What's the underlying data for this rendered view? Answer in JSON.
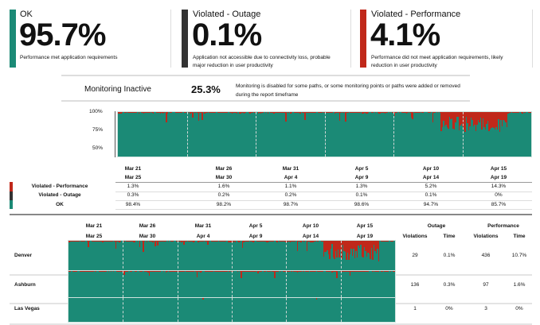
{
  "colors": {
    "ok": "#1b8a76",
    "outage": "#333333",
    "performance": "#c0281a"
  },
  "cards": [
    {
      "label": "OK",
      "value": "95.7%",
      "desc": "Performance met application requirements",
      "color": "#1b8a76"
    },
    {
      "label": "Violated - Outage",
      "value": "0.1%",
      "desc": "Application not accessible due to connectivity loss, probable major reduction in user productivity",
      "color": "#333333"
    },
    {
      "label": "Violated - Performance",
      "value": "4.1%",
      "desc": "Performance did not meet application requirements, likely reduction in user productivity",
      "color": "#c0281a"
    }
  ],
  "inactive": {
    "label": "Monitoring Inactive",
    "value": "25.3%",
    "desc": "Monitoring is disabled for some paths, or some monitoring points or paths were added or removed during the report timeframe"
  },
  "chart_data": {
    "type": "area",
    "y_ticks": [
      "100%",
      "75%",
      "50%"
    ],
    "ylim": [
      40,
      100
    ],
    "periods": [
      {
        "start": "Mar 21",
        "end": "Mar 25",
        "performance": "1.3%",
        "outage": "0.3%",
        "ok": "98.4%"
      },
      {
        "start": "Mar 26",
        "end": "Mar 30",
        "performance": "1.6%",
        "outage": "0.2%",
        "ok": "98.2%"
      },
      {
        "start": "Mar 31",
        "end": "Apr 4",
        "performance": "1.1%",
        "outage": "0.2%",
        "ok": "98.7%"
      },
      {
        "start": "Apr 5",
        "end": "Apr 9",
        "performance": "1.3%",
        "outage": "0.1%",
        "ok": "98.6%"
      },
      {
        "start": "Apr 10",
        "end": "Apr 14",
        "performance": "5.2%",
        "outage": "0.1%",
        "ok": "94.7%"
      },
      {
        "start": "Apr 15",
        "end": "Apr 19",
        "performance": "14.3%",
        "outage": "0%",
        "ok": "85.7%"
      }
    ],
    "row_labels": {
      "performance": "Violated - Performance",
      "outage": "Violated - Outage",
      "ok": "OK"
    }
  },
  "sites": {
    "headers": {
      "outage": "Outage",
      "performance": "Performance",
      "violations": "Violations",
      "time": "Time"
    },
    "rows": [
      {
        "name": "Denver",
        "outage_violations": "29",
        "outage_time": "0.1%",
        "perf_violations": "436",
        "perf_time": "10.7%"
      },
      {
        "name": "Ashburn",
        "outage_violations": "136",
        "outage_time": "0.3%",
        "perf_violations": "97",
        "perf_time": "1.6%"
      },
      {
        "name": "Las Vegas",
        "outage_violations": "1",
        "outage_time": "0%",
        "perf_violations": "3",
        "perf_time": "0%"
      }
    ]
  }
}
